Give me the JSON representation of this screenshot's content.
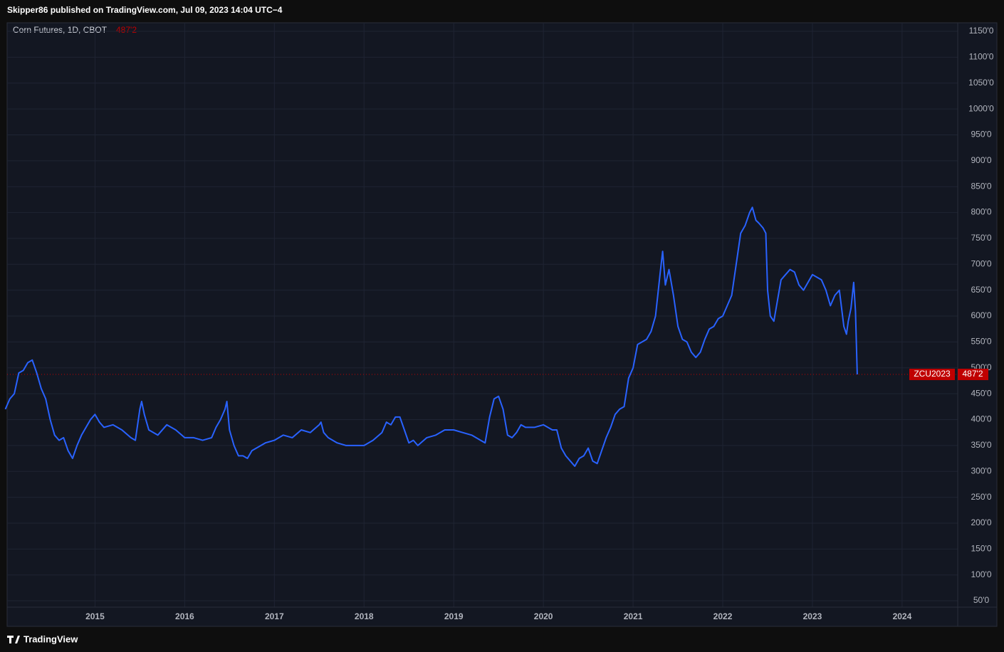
{
  "header": {
    "text": "Skipper86 published on TradingView.com, Jul 09, 2023 14:04 UTC−4"
  },
  "footer": {
    "brand": "TradingView"
  },
  "chart_data": {
    "type": "line",
    "title": "Corn Futures, 1D, CBOT",
    "x": [
      2014.0,
      2014.05,
      2014.1,
      2014.15,
      2014.2,
      2014.25,
      2014.3,
      2014.35,
      2014.4,
      2014.45,
      2014.5,
      2014.55,
      2014.6,
      2014.65,
      2014.7,
      2014.75,
      2014.8,
      2014.85,
      2014.9,
      2014.95,
      2015.0,
      2015.05,
      2015.1,
      2015.2,
      2015.3,
      2015.4,
      2015.45,
      2015.5,
      2015.52,
      2015.55,
      2015.6,
      2015.7,
      2015.8,
      2015.9,
      2016.0,
      2016.1,
      2016.2,
      2016.3,
      2016.35,
      2016.4,
      2016.45,
      2016.47,
      2016.5,
      2016.55,
      2016.6,
      2016.65,
      2016.7,
      2016.75,
      2016.8,
      2016.9,
      2017.0,
      2017.1,
      2017.2,
      2017.3,
      2017.4,
      2017.5,
      2017.52,
      2017.55,
      2017.6,
      2017.7,
      2017.8,
      2017.9,
      2018.0,
      2018.1,
      2018.2,
      2018.25,
      2018.3,
      2018.35,
      2018.4,
      2018.45,
      2018.5,
      2018.55,
      2018.6,
      2018.7,
      2018.8,
      2018.9,
      2019.0,
      2019.1,
      2019.2,
      2019.3,
      2019.35,
      2019.4,
      2019.45,
      2019.5,
      2019.55,
      2019.6,
      2019.65,
      2019.7,
      2019.75,
      2019.8,
      2019.9,
      2020.0,
      2020.1,
      2020.15,
      2020.2,
      2020.25,
      2020.3,
      2020.35,
      2020.4,
      2020.45,
      2020.5,
      2020.55,
      2020.6,
      2020.65,
      2020.7,
      2020.75,
      2020.8,
      2020.85,
      2020.9,
      2020.95,
      2021.0,
      2021.05,
      2021.1,
      2021.15,
      2021.2,
      2021.25,
      2021.3,
      2021.33,
      2021.36,
      2021.4,
      2021.45,
      2021.5,
      2021.55,
      2021.6,
      2021.65,
      2021.7,
      2021.75,
      2021.8,
      2021.85,
      2021.9,
      2021.95,
      2022.0,
      2022.05,
      2022.1,
      2022.15,
      2022.2,
      2022.25,
      2022.3,
      2022.33,
      2022.37,
      2022.4,
      2022.45,
      2022.48,
      2022.5,
      2022.53,
      2022.57,
      2022.6,
      2022.65,
      2022.7,
      2022.75,
      2022.8,
      2022.85,
      2022.9,
      2022.95,
      2023.0,
      2023.05,
      2023.1,
      2023.15,
      2023.2,
      2023.25,
      2023.3,
      2023.35,
      2023.38,
      2023.4,
      2023.43,
      2023.46,
      2023.48,
      2023.5
    ],
    "series": [
      {
        "name": "ZCU2023",
        "color": "#2962ff",
        "last_label": "487'2",
        "values": [
          420,
          440,
          450,
          490,
          495,
          510,
          515,
          490,
          460,
          440,
          400,
          370,
          360,
          365,
          340,
          325,
          350,
          370,
          385,
          400,
          410,
          395,
          385,
          390,
          380,
          365,
          360,
          420,
          435,
          410,
          380,
          370,
          390,
          380,
          365,
          365,
          360,
          365,
          385,
          400,
          420,
          435,
          380,
          350,
          330,
          330,
          325,
          340,
          345,
          355,
          360,
          370,
          365,
          380,
          375,
          390,
          395,
          375,
          365,
          355,
          350,
          350,
          350,
          360,
          375,
          395,
          390,
          405,
          405,
          380,
          355,
          360,
          350,
          365,
          370,
          380,
          380,
          375,
          370,
          360,
          355,
          405,
          440,
          445,
          420,
          370,
          365,
          375,
          390,
          385,
          385,
          390,
          380,
          380,
          345,
          330,
          320,
          310,
          325,
          330,
          345,
          320,
          315,
          340,
          365,
          385,
          410,
          420,
          425,
          480,
          500,
          545,
          550,
          555,
          570,
          600,
          680,
          725,
          660,
          690,
          640,
          580,
          555,
          550,
          530,
          520,
          530,
          555,
          575,
          580,
          595,
          600,
          620,
          640,
          700,
          760,
          775,
          800,
          810,
          785,
          780,
          770,
          760,
          650,
          600,
          590,
          620,
          670,
          680,
          690,
          685,
          660,
          650,
          665,
          680,
          675,
          670,
          650,
          620,
          640,
          650,
          580,
          565,
          590,
          615,
          665,
          610,
          487.25
        ]
      }
    ],
    "xlim": [
      2014.02,
      2024.62
    ],
    "xticks": [
      2015,
      2016,
      2017,
      2018,
      2019,
      2020,
      2021,
      2022,
      2023,
      2024
    ],
    "ylim": [
      37.7,
      1166.5
    ],
    "yticks": [
      {
        "value": 50,
        "label": "50'0"
      },
      {
        "value": 100,
        "label": "100'0"
      },
      {
        "value": 150,
        "label": "150'0"
      },
      {
        "value": 200,
        "label": "200'0"
      },
      {
        "value": 250,
        "label": "250'0"
      },
      {
        "value": 300,
        "label": "300'0"
      },
      {
        "value": 350,
        "label": "350'0"
      },
      {
        "value": 400,
        "label": "400'0"
      },
      {
        "value": 450,
        "label": "450'0"
      },
      {
        "value": 500,
        "label": "500'0"
      },
      {
        "value": 550,
        "label": "550'0"
      },
      {
        "value": 600,
        "label": "600'0"
      },
      {
        "value": 650,
        "label": "650'0"
      },
      {
        "value": 700,
        "label": "700'0"
      },
      {
        "value": 750,
        "label": "750'0"
      },
      {
        "value": 800,
        "label": "800'0"
      },
      {
        "value": 850,
        "label": "850'0"
      },
      {
        "value": 900,
        "label": "900'0"
      },
      {
        "value": 950,
        "label": "950'0"
      },
      {
        "value": 1000,
        "label": "1000'0"
      },
      {
        "value": 1050,
        "label": "1050'0"
      },
      {
        "value": 1100,
        "label": "1100'0"
      },
      {
        "value": 1150,
        "label": "1150'0"
      }
    ],
    "grid": true,
    "last_price_color": "#c00000"
  }
}
